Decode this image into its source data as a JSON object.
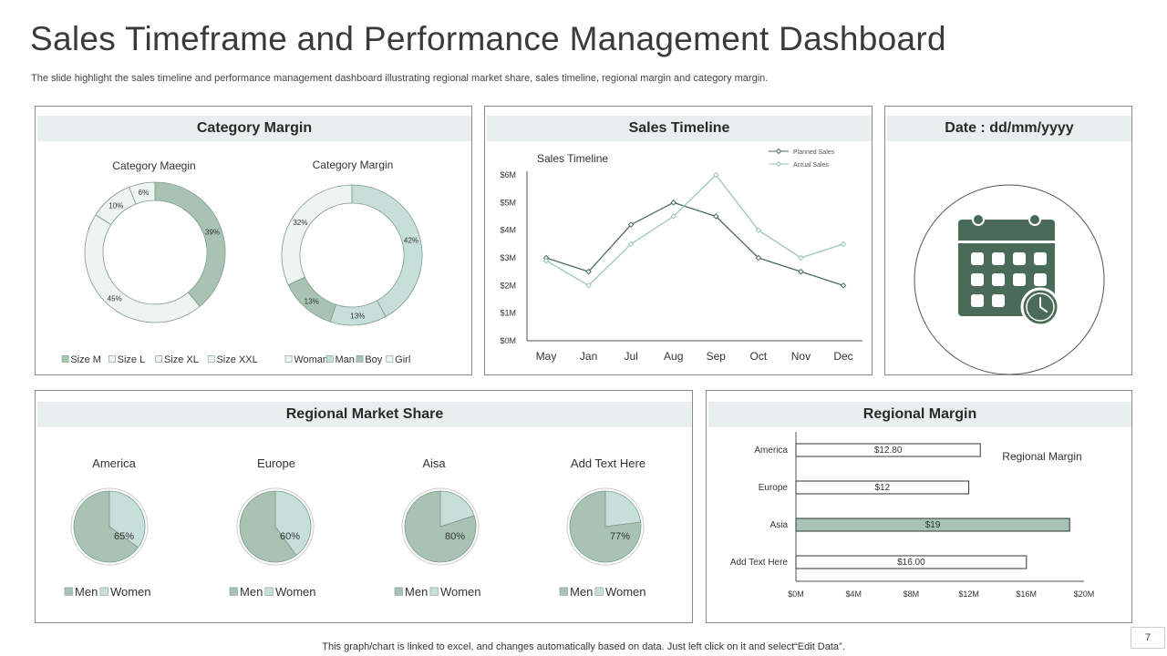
{
  "header": {
    "title": "Sales Timeframe and Performance Management Dashboard",
    "subtitle": "The slide highlight the sales timeline and performance management dashboard illustrating regional market share, sales timeline, regional margin and category margin."
  },
  "panels": {
    "category_margin": "Category Margin",
    "sales_timeline": "Sales Timeline",
    "date": "Date : dd/mm/yyyy",
    "regional_market_share": "Regional Market Share",
    "regional_margin": "Regional Margin"
  },
  "colors": {
    "dark": "#4a6b58",
    "medium": "#a8c3b3",
    "light": "#c7dfdb",
    "pale": "#eef4f1",
    "head_bg": "#e8efee"
  },
  "icon": "calendar-clock-icon",
  "footer": "This graph/chart is linked to excel,  and changes automatically based on data. Just left click on it and select“Edit Data”.",
  "page_number": "7",
  "chart_data": [
    {
      "id": "donut1",
      "type": "pie",
      "title": "Category Maegin",
      "categories": [
        "Size M",
        "Size L",
        "Size XL",
        "Size XXL"
      ],
      "values": [
        39,
        45,
        10,
        6
      ],
      "labels": [
        "39%",
        "45%",
        "10%",
        "6%"
      ]
    },
    {
      "id": "donut2",
      "type": "pie",
      "title": "Category Margin",
      "categories": [
        "Woman",
        "Man",
        "Boy",
        "Girl"
      ],
      "values": [
        42,
        13,
        13,
        32
      ],
      "labels": [
        "42%",
        "13%",
        "13%",
        "32%"
      ]
    },
    {
      "id": "timeline",
      "type": "line",
      "title": "Sales Timeline",
      "categories": [
        "May",
        "Jan",
        "Jul",
        "Aug",
        "Sep",
        "Oct",
        "Nov",
        "Dec"
      ],
      "y_ticks": [
        "$0M",
        "$1M",
        "$2M",
        "$3M",
        "$4M",
        "$5M",
        "$6M"
      ],
      "ylim": [
        0,
        6
      ],
      "series": [
        {
          "name": "Planned Sales",
          "values": [
            3,
            2.5,
            4.2,
            5,
            4.5,
            3,
            2.5,
            2
          ]
        },
        {
          "name": "Actual Sales",
          "values": [
            2.9,
            2,
            3.5,
            4.5,
            6,
            4,
            3,
            3.5
          ]
        }
      ]
    },
    {
      "id": "pie_america",
      "type": "pie",
      "title": "America",
      "categories": [
        "Men",
        "Women"
      ],
      "values": [
        35,
        65
      ],
      "labels": [
        "35%",
        "65%"
      ]
    },
    {
      "id": "pie_europe",
      "type": "pie",
      "title": "Europe",
      "categories": [
        "Men",
        "Women"
      ],
      "values": [
        40,
        60
      ],
      "labels": [
        "40%",
        "60%"
      ]
    },
    {
      "id": "pie_asia",
      "type": "pie",
      "title": "Aisa",
      "categories": [
        "Men",
        "Women"
      ],
      "values": [
        20,
        80
      ],
      "labels": [
        "20%",
        "80%"
      ]
    },
    {
      "id": "pie_other",
      "type": "pie",
      "title": "Add Text Here",
      "categories": [
        "Men",
        "Women"
      ],
      "values": [
        23,
        77
      ],
      "labels": [
        "23%",
        "77%"
      ]
    },
    {
      "id": "regional_margin",
      "type": "bar",
      "title": "Regional  Margin",
      "orientation": "horizontal",
      "categories": [
        "America",
        "Europe",
        "Asia",
        "Add Text Here"
      ],
      "values": [
        12.8,
        12,
        19,
        16
      ],
      "labels": [
        "$12.80",
        "$12",
        "$19",
        "$16.00"
      ],
      "x_ticks": [
        "$0M",
        "$4M",
        "$8M",
        "$12M",
        "$16M",
        "$20M"
      ],
      "xlim": [
        0,
        20
      ]
    }
  ]
}
